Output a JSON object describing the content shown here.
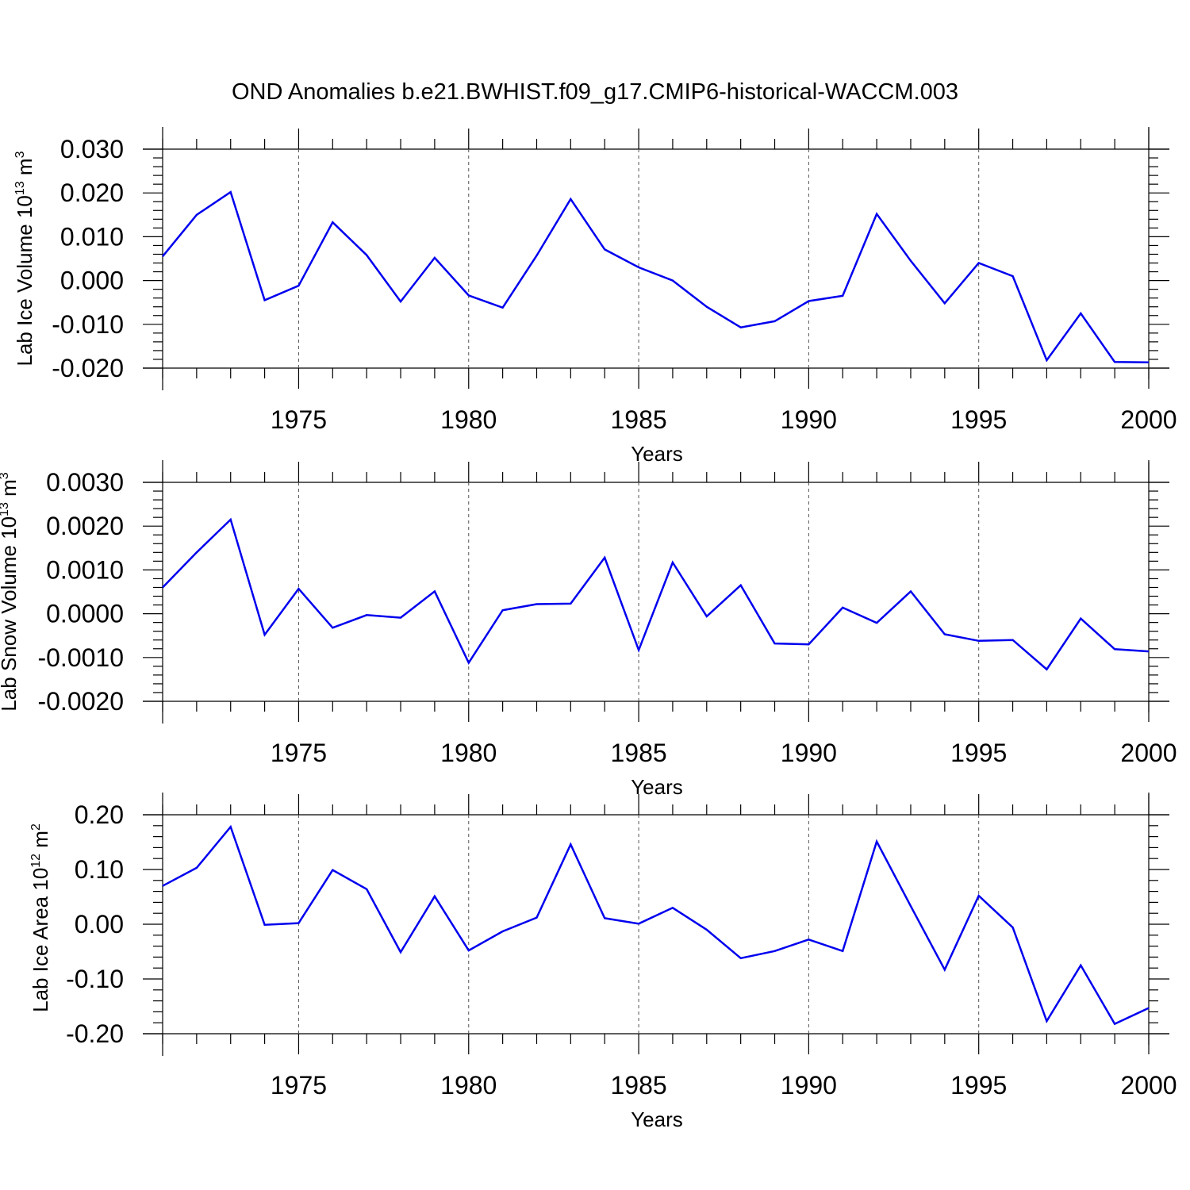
{
  "figure": {
    "title": "OND Anomalies b.e21.BWHIST.f09_g17.CMIP6-historical-WACCM.003"
  },
  "chart_data": [
    {
      "type": "line",
      "xlabel": "Years",
      "ylabel_main": "Lab Ice Volume 10",
      "ylabel_sup": "13",
      "ylabel_unit": " m",
      "ylabel_unit_sup": "3",
      "xlim": [
        1971,
        2000
      ],
      "ylim": [
        -0.02,
        0.03
      ],
      "xticks": [
        1975,
        1980,
        1985,
        1990,
        1995,
        2000
      ],
      "xtick_labels": [
        "1975",
        "1980",
        "1985",
        "1990",
        "1995",
        "2000"
      ],
      "yticks": [
        -0.02,
        -0.01,
        0.0,
        0.01,
        0.02,
        0.03
      ],
      "ytick_labels": [
        "-0.020",
        "-0.010",
        "0.000",
        "0.010",
        "0.020",
        "0.030"
      ],
      "grid_x": [
        1975,
        1980,
        1985,
        1990,
        1995
      ],
      "color": "#0000ee",
      "x": [
        1971,
        1972,
        1973,
        1974,
        1975,
        1976,
        1977,
        1978,
        1979,
        1980,
        1981,
        1982,
        1983,
        1984,
        1985,
        1986,
        1987,
        1988,
        1989,
        1990,
        1991,
        1992,
        1993,
        1994,
        1995,
        1996,
        1997,
        1998,
        1999,
        2000
      ],
      "y": [
        0.0055,
        0.015,
        0.0202,
        -0.0045,
        -0.0012,
        0.0133,
        0.0058,
        -0.0048,
        0.0052,
        -0.0034,
        -0.0062,
        0.0057,
        0.0186,
        0.0071,
        0.003,
        0.0,
        -0.006,
        -0.0107,
        -0.0093,
        -0.0047,
        -0.0035,
        0.0152,
        0.0045,
        -0.0052,
        0.004,
        0.001,
        -0.0182,
        -0.0075,
        -0.0186,
        -0.0187
      ]
    },
    {
      "type": "line",
      "xlabel": "Years",
      "ylabel_main": "Lab Snow Volume 10",
      "ylabel_sup": "13",
      "ylabel_unit": " m",
      "ylabel_unit_sup": "3",
      "xlim": [
        1971,
        2000
      ],
      "ylim": [
        -0.002,
        0.003
      ],
      "xticks": [
        1975,
        1980,
        1985,
        1990,
        1995,
        2000
      ],
      "xtick_labels": [
        "1975",
        "1980",
        "1985",
        "1990",
        "1995",
        "2000"
      ],
      "yticks": [
        -0.002,
        -0.001,
        0.0,
        0.001,
        0.002,
        0.003
      ],
      "ytick_labels": [
        "-0.0020",
        "-0.0010",
        "0.0000",
        "0.0010",
        "0.0020",
        "0.0030"
      ],
      "grid_x": [
        1975,
        1980,
        1985,
        1990,
        1995
      ],
      "color": "#0000ee",
      "x": [
        1971,
        1972,
        1973,
        1974,
        1975,
        1976,
        1977,
        1978,
        1979,
        1980,
        1981,
        1982,
        1983,
        1984,
        1985,
        1986,
        1987,
        1988,
        1989,
        1990,
        1991,
        1992,
        1993,
        1994,
        1995,
        1996,
        1997,
        1998,
        1999,
        2000
      ],
      "y": [
        0.0006,
        0.0014,
        0.00215,
        -0.00048,
        0.00057,
        -0.00032,
        -3e-05,
        -9e-05,
        0.00051,
        -0.00112,
        8e-05,
        0.00022,
        0.00023,
        0.00128,
        -0.00083,
        0.00117,
        -6e-05,
        0.00065,
        -0.00068,
        -0.0007,
        0.00014,
        -0.00021,
        0.00051,
        -0.00047,
        -0.00062,
        -0.0006,
        -0.00127,
        -0.00011,
        -0.00081,
        -0.00086
      ]
    },
    {
      "type": "line",
      "xlabel": "Years",
      "ylabel_main": "Lab Ice Area 10",
      "ylabel_sup": "12",
      "ylabel_unit": " m",
      "ylabel_unit_sup": "2",
      "xlim": [
        1971,
        2000
      ],
      "ylim": [
        -0.2,
        0.2
      ],
      "xticks": [
        1975,
        1980,
        1985,
        1990,
        1995,
        2000
      ],
      "xtick_labels": [
        "1975",
        "1980",
        "1985",
        "1990",
        "1995",
        "2000"
      ],
      "yticks": [
        -0.2,
        -0.1,
        0.0,
        0.1,
        0.2
      ],
      "ytick_labels": [
        "-0.20",
        "-0.10",
        "0.00",
        "0.10",
        "0.20"
      ],
      "grid_x": [
        1975,
        1980,
        1985,
        1990,
        1995
      ],
      "color": "#0000ee",
      "x": [
        1971,
        1972,
        1973,
        1974,
        1975,
        1976,
        1977,
        1978,
        1979,
        1980,
        1981,
        1982,
        1983,
        1984,
        1985,
        1986,
        1987,
        1988,
        1989,
        1990,
        1991,
        1992,
        1993,
        1994,
        1995,
        1996,
        1997,
        1998,
        1999,
        2000
      ],
      "y": [
        0.07,
        0.103,
        0.178,
        -0.001,
        0.002,
        0.099,
        0.064,
        -0.051,
        0.051,
        -0.048,
        -0.013,
        0.012,
        0.146,
        0.011,
        0.001,
        0.03,
        -0.01,
        -0.062,
        -0.049,
        -0.028,
        -0.049,
        0.151,
        0.033,
        -0.083,
        0.052,
        -0.006,
        -0.177,
        -0.075,
        -0.182,
        -0.153
      ]
    }
  ]
}
